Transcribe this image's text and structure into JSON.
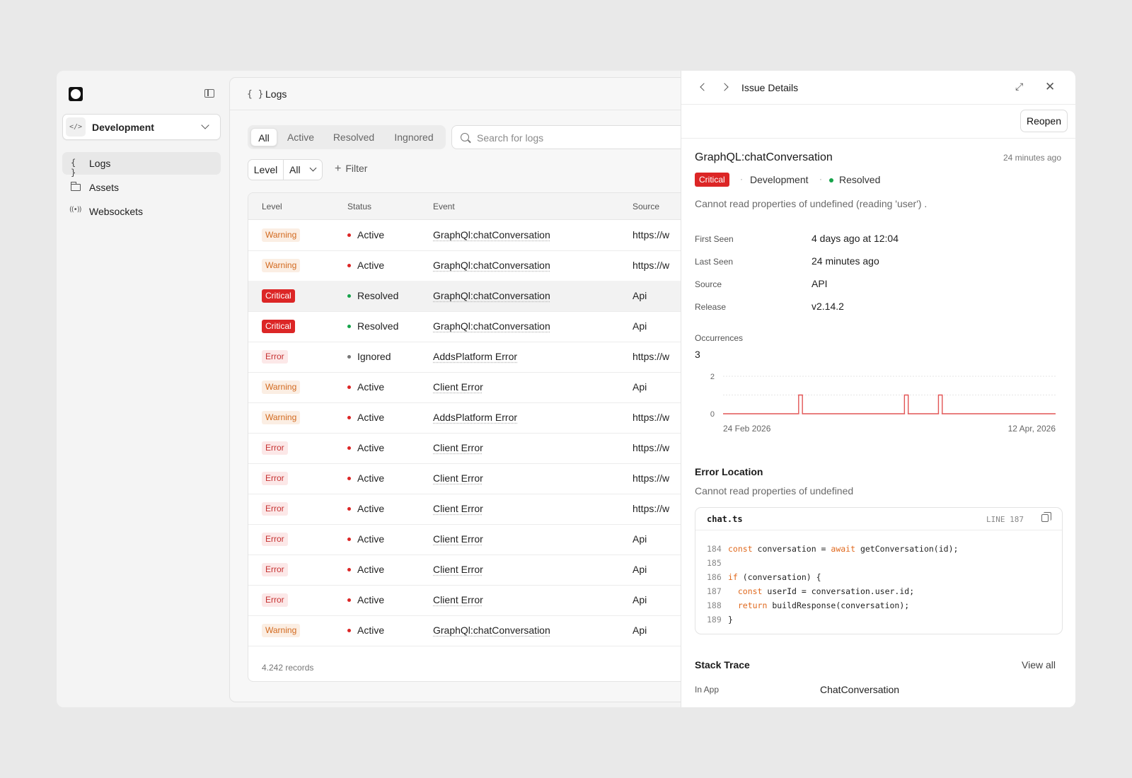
{
  "sidebar": {
    "environment": "Development",
    "items": [
      {
        "label": "Logs",
        "icon": "braces-icon",
        "active": true
      },
      {
        "label": "Assets",
        "icon": "folder-icon",
        "active": false
      },
      {
        "label": "Websockets",
        "icon": "broadcast-icon",
        "active": false
      }
    ]
  },
  "main": {
    "title": "Logs",
    "tabs": [
      "All",
      "Active",
      "Resolved",
      "Ingnored"
    ],
    "active_tab": "All",
    "search_placeholder": "Search for logs",
    "level_label": "Level",
    "level_value": "All",
    "filter_label": "Filter",
    "columns": [
      "Level",
      "Status",
      "Event",
      "Source"
    ],
    "rows": [
      {
        "level": "Warning",
        "status": "Active",
        "event": "GraphQl:chatConversation",
        "source": "https://w"
      },
      {
        "level": "Warning",
        "status": "Active",
        "event": "GraphQl:chatConversation",
        "source": "https://w"
      },
      {
        "level": "Critical",
        "status": "Resolved",
        "event": "GraphQl:chatConversation",
        "source": "Api"
      },
      {
        "level": "Critical",
        "status": "Resolved",
        "event": "GraphQl:chatConversation",
        "source": "Api"
      },
      {
        "level": "Error",
        "status": "Ignored",
        "event": "AddsPlatform Error",
        "source": "https://w"
      },
      {
        "level": "Warning",
        "status": "Active",
        "event": "Client Error",
        "source": "Api"
      },
      {
        "level": "Warning",
        "status": "Active",
        "event": "AddsPlatform Error",
        "source": "https://w"
      },
      {
        "level": "Error",
        "status": "Active",
        "event": "Client Error",
        "source": "https://w"
      },
      {
        "level": "Error",
        "status": "Active",
        "event": "Client Error",
        "source": "https://w"
      },
      {
        "level": "Error",
        "status": "Active",
        "event": "Client Error",
        "source": "https://w"
      },
      {
        "level": "Error",
        "status": "Active",
        "event": "Client Error",
        "source": "Api"
      },
      {
        "level": "Error",
        "status": "Active",
        "event": "Client Error",
        "source": "Api"
      },
      {
        "level": "Error",
        "status": "Active",
        "event": "Client Error",
        "source": "Api"
      },
      {
        "level": "Warning",
        "status": "Active",
        "event": "GraphQl:chatConversation",
        "source": "Api"
      }
    ],
    "records": "4.242 records"
  },
  "detail": {
    "title": "Issue Details",
    "reopen_label": "Reopen",
    "issue_title": "GraphQL:chatConversation",
    "time_ago": "24 minutes ago",
    "severity": "Critical",
    "environment": "Development",
    "status": "Resolved",
    "description": "Cannot read properties of undefined (reading 'user') .",
    "properties": [
      {
        "label": "First Seen",
        "value": "4 days ago at 12:04"
      },
      {
        "label": "Last Seen",
        "value": "24 minutes ago"
      },
      {
        "label": "Source",
        "value": "API"
      },
      {
        "label": "Release",
        "value": "v2.14.2"
      }
    ],
    "occurrences_label": "Occurrences",
    "occurrences_value": "3",
    "error_location_title": "Error Location",
    "error_location_desc": "Cannot read properties of undefined",
    "code": {
      "file": "chat.ts",
      "line_label": "LINE 187"
    },
    "stack_title": "Stack Trace",
    "stack_view_all": "View all",
    "stack_label": "In App",
    "stack_value": "ChatConversation"
  },
  "colors": {
    "critical": "#dc2626",
    "warning": "#d2691e",
    "error": "#c53030",
    "resolved": "#16a34a",
    "active": "#dc2626",
    "ignored": "#777777",
    "chart_line": "#e25555"
  },
  "chart_data": {
    "type": "line",
    "x_labels": [
      "24 Feb 2026",
      "12 Apr, 2026"
    ],
    "y_ticks": [
      "2",
      "0"
    ],
    "ylim": [
      0,
      2
    ],
    "series": [
      {
        "values": [
          0,
          0,
          0,
          0,
          0,
          0,
          0,
          0,
          0,
          0,
          0,
          0,
          0,
          0,
          0,
          0,
          0,
          0,
          0,
          0,
          1,
          0,
          0,
          0,
          0,
          0,
          0,
          0,
          0,
          0,
          0,
          0,
          0,
          0,
          0,
          0,
          0,
          0,
          0,
          0,
          0,
          0,
          0,
          0,
          0,
          0,
          0,
          0,
          1,
          0,
          0,
          0,
          0,
          0,
          0,
          0,
          0,
          1,
          0,
          0,
          0,
          0,
          0,
          0,
          0,
          0,
          0,
          0,
          0,
          0,
          0,
          0,
          0,
          0,
          0,
          0,
          0,
          0,
          0,
          0,
          0,
          0,
          0,
          0,
          0,
          0,
          0,
          0
        ]
      }
    ],
    "grid": true
  }
}
